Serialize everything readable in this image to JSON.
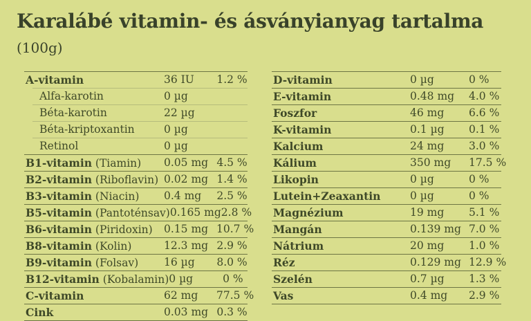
{
  "title": {
    "main": "Karalábé vitamin- és ásványianyag tartalma",
    "suffix": "(100g)"
  },
  "colors": {
    "background": "#d9de8d",
    "text": "#3f4928",
    "separator_dark": "#6d7544",
    "separator_light": "#b6bc7c"
  },
  "left_table": {
    "rows": [
      {
        "name": "A-vitamin",
        "paren": "",
        "value": "36 IU",
        "pct": "1.2 %",
        "sub": false
      },
      {
        "name": "Alfa-karotin",
        "paren": "",
        "value": "0 µg",
        "pct": "",
        "sub": true
      },
      {
        "name": "Béta-karotin",
        "paren": "",
        "value": "22 µg",
        "pct": "",
        "sub": true
      },
      {
        "name": "Béta-kriptoxantin",
        "paren": "",
        "value": "0 µg",
        "pct": "",
        "sub": true
      },
      {
        "name": "Retinol",
        "paren": "",
        "value": "0 µg",
        "pct": "",
        "sub": true
      },
      {
        "name": "B1-vitamin",
        "paren": "(Tiamin)",
        "value": "0.05 mg",
        "pct": "4.5 %",
        "sub": false
      },
      {
        "name": "B2-vitamin",
        "paren": "(Riboflavin)",
        "value": "0.02 mg",
        "pct": "1.4 %",
        "sub": false
      },
      {
        "name": "B3-vitamin",
        "paren": "(Niacin)",
        "value": "0.4 mg",
        "pct": "2.5 %",
        "sub": false
      },
      {
        "name": "B5-vitamin",
        "paren": "(Pantoténsav)",
        "value": "0.165 mg",
        "pct": "2.8 %",
        "sub": false
      },
      {
        "name": "B6-vitamin",
        "paren": "(Piridoxin)",
        "value": "0.15 mg",
        "pct": "10.7 %",
        "sub": false
      },
      {
        "name": "B8-vitamin",
        "paren": "(Kolin)",
        "value": "12.3 mg",
        "pct": "2.9 %",
        "sub": false
      },
      {
        "name": "B9-vitamin",
        "paren": "(Folsav)",
        "value": "16 µg",
        "pct": "8.0 %",
        "sub": false
      },
      {
        "name": "B12-vitamin",
        "paren": "(Kobalamin)",
        "value": "0 µg",
        "pct": "0 %",
        "sub": false
      },
      {
        "name": "C-vitamin",
        "paren": "",
        "value": "62 mg",
        "pct": "77.5 %",
        "sub": false
      },
      {
        "name": "Cink",
        "paren": "",
        "value": "0.03 mg",
        "pct": "0.3 %",
        "sub": false
      }
    ]
  },
  "right_table": {
    "rows": [
      {
        "name": "D-vitamin",
        "paren": "",
        "value": "0 µg",
        "pct": "0 %",
        "sub": false
      },
      {
        "name": "E-vitamin",
        "paren": "",
        "value": "0.48 mg",
        "pct": "4.0 %",
        "sub": false
      },
      {
        "name": "Foszfor",
        "paren": "",
        "value": "46 mg",
        "pct": "6.6 %",
        "sub": false
      },
      {
        "name": "K-vitamin",
        "paren": "",
        "value": "0.1 µg",
        "pct": "0.1 %",
        "sub": false
      },
      {
        "name": "Kalcium",
        "paren": "",
        "value": "24 mg",
        "pct": "3.0 %",
        "sub": false
      },
      {
        "name": "Kálium",
        "paren": "",
        "value": "350 mg",
        "pct": "17.5 %",
        "sub": false
      },
      {
        "name": "Likopin",
        "paren": "",
        "value": "0 µg",
        "pct": "0 %",
        "sub": false
      },
      {
        "name": "Lutein+Zeaxantin",
        "paren": "",
        "value": "0 µg",
        "pct": "0 %",
        "sub": false
      },
      {
        "name": "Magnézium",
        "paren": "",
        "value": "19 mg",
        "pct": "5.1 %",
        "sub": false
      },
      {
        "name": "Mangán",
        "paren": "",
        "value": "0.139 mg",
        "pct": "7.0 %",
        "sub": false
      },
      {
        "name": "Nátrium",
        "paren": "",
        "value": "20 mg",
        "pct": "1.0 %",
        "sub": false
      },
      {
        "name": "Réz",
        "paren": "",
        "value": "0.129 mg",
        "pct": "12.9 %",
        "sub": false
      },
      {
        "name": "Szelén",
        "paren": "",
        "value": "0.7 µg",
        "pct": "1.3 %",
        "sub": false
      },
      {
        "name": "Vas",
        "paren": "",
        "value": "0.4 mg",
        "pct": "2.9 %",
        "sub": false
      }
    ]
  }
}
